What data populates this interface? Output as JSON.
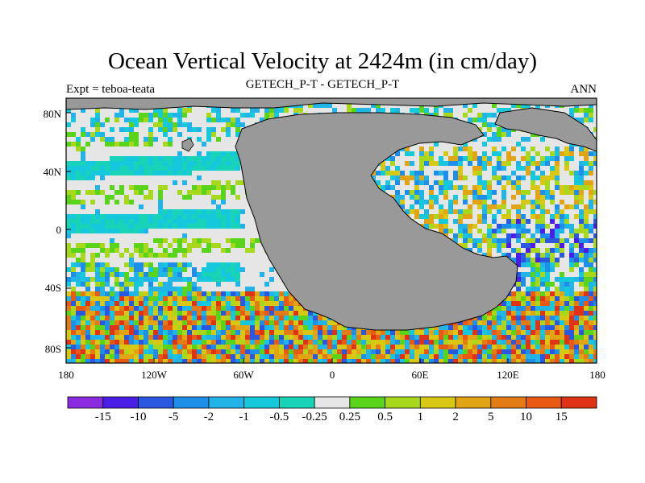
{
  "chart_data": {
    "type": "heatmap",
    "title": "Ocean Vertical Velocity at 2424m (in cm/day)",
    "left_string": "Expt = teboa-teata",
    "center_string": "GETECH_P-T - GETECH_P-T",
    "right_string": "ANN",
    "x_ticks": [
      "180",
      "120W",
      "60W",
      "0",
      "60E",
      "120E",
      "180"
    ],
    "y_ticks": [
      "80N",
      "40N",
      "0",
      "40S",
      "80S"
    ],
    "xlim": [
      -180,
      180
    ],
    "ylim": [
      -90,
      90
    ],
    "colorbar": {
      "levels": [
        "-15",
        "-10",
        "-5",
        "-2",
        "-1",
        "-0.5",
        "-0.25",
        "0.25",
        "0.5",
        "1",
        "2",
        "5",
        "10",
        "15"
      ],
      "colors": [
        "#8a2be2",
        "#4a1ee6",
        "#2a58e0",
        "#1e8fe8",
        "#22b4e6",
        "#15c8dc",
        "#19d3b8",
        "#e6e6e6",
        "#5ad41a",
        "#a7d81c",
        "#d8c814",
        "#e0a414",
        "#e37c14",
        "#e85a14",
        "#e03214"
      ]
    },
    "land_color": "#999999",
    "ocean_neutral_color": "#e6e6e6"
  }
}
